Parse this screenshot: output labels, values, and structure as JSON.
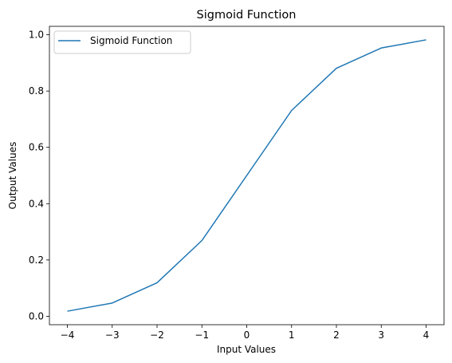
{
  "chart_data": {
    "type": "line",
    "title": "Sigmoid Function",
    "xlabel": "Input Values",
    "ylabel": "Output Values",
    "xlim": [
      -4.4,
      4.4
    ],
    "ylim": [
      -0.03,
      1.03
    ],
    "x_ticks": [
      -4,
      -3,
      -2,
      -1,
      0,
      1,
      2,
      3,
      4
    ],
    "x_tick_labels": [
      "−4",
      "−3",
      "−2",
      "−1",
      "0",
      "1",
      "2",
      "3",
      "4"
    ],
    "y_ticks": [
      0.0,
      0.2,
      0.4,
      0.6,
      0.8,
      1.0
    ],
    "y_tick_labels": [
      "0.0",
      "0.2",
      "0.4",
      "0.6",
      "0.8",
      "1.0"
    ],
    "grid": false,
    "legend": {
      "position": "top-left"
    },
    "series": [
      {
        "name": "Sigmoid Function",
        "color": "#1f77b4",
        "x": [
          -4,
          -3,
          -2,
          -1,
          0,
          1,
          2,
          3,
          4
        ],
        "y": [
          0.018,
          0.047,
          0.119,
          0.269,
          0.5,
          0.731,
          0.881,
          0.953,
          0.982
        ]
      }
    ]
  }
}
